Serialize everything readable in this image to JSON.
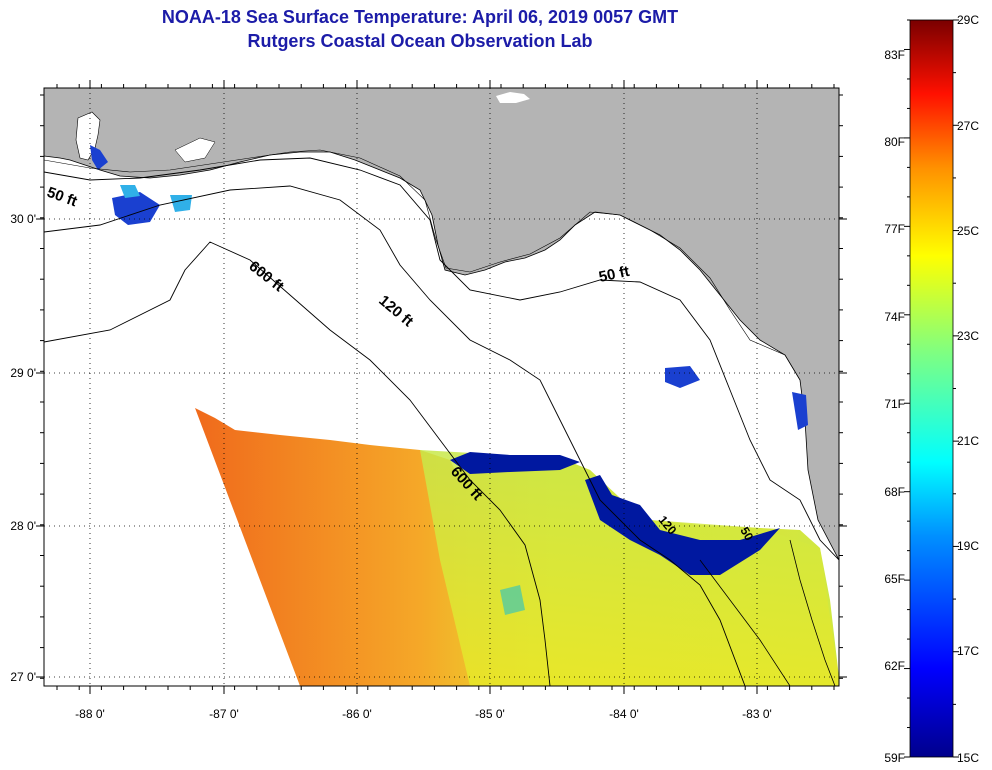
{
  "header": {
    "title": "NOAA-18 Sea Surface Temperature:  April 06, 2019 0057 GMT",
    "subtitle": "Rutgers Coastal Ocean Observation Lab"
  },
  "map": {
    "lon_labels": [
      "-88 0'",
      "-87 0'",
      "-86 0'",
      "-85 0'",
      "-84 0'",
      "-83 0'"
    ],
    "lat_labels": [
      "30 0'",
      "29 0'",
      "28 0'",
      "27 0'"
    ],
    "contours": {
      "c50_west": "50 ft",
      "c50_east": "50 ft",
      "c120": "120 ft",
      "c600_a": "600 ft",
      "c600_b": "600 ft",
      "c_small1": "120",
      "c_small2": "50"
    },
    "colors": {
      "land": "#b4b4b4",
      "nodata": "#ffffff",
      "warm": "#f07820",
      "mid": "#d8e830",
      "cool": "#0018a0"
    }
  },
  "colorbar": {
    "f_labels": [
      "83F",
      "80F",
      "77F",
      "74F",
      "71F",
      "68F",
      "65F",
      "62F"
    ],
    "c_labels": [
      "27C",
      "25C",
      "23C",
      "21C",
      "19C",
      "17C"
    ],
    "f_bottom": "59F",
    "c_top": "29C",
    "c_bottom": "15C",
    "range_c": [
      15,
      29
    ],
    "range_f": [
      59,
      84
    ]
  }
}
